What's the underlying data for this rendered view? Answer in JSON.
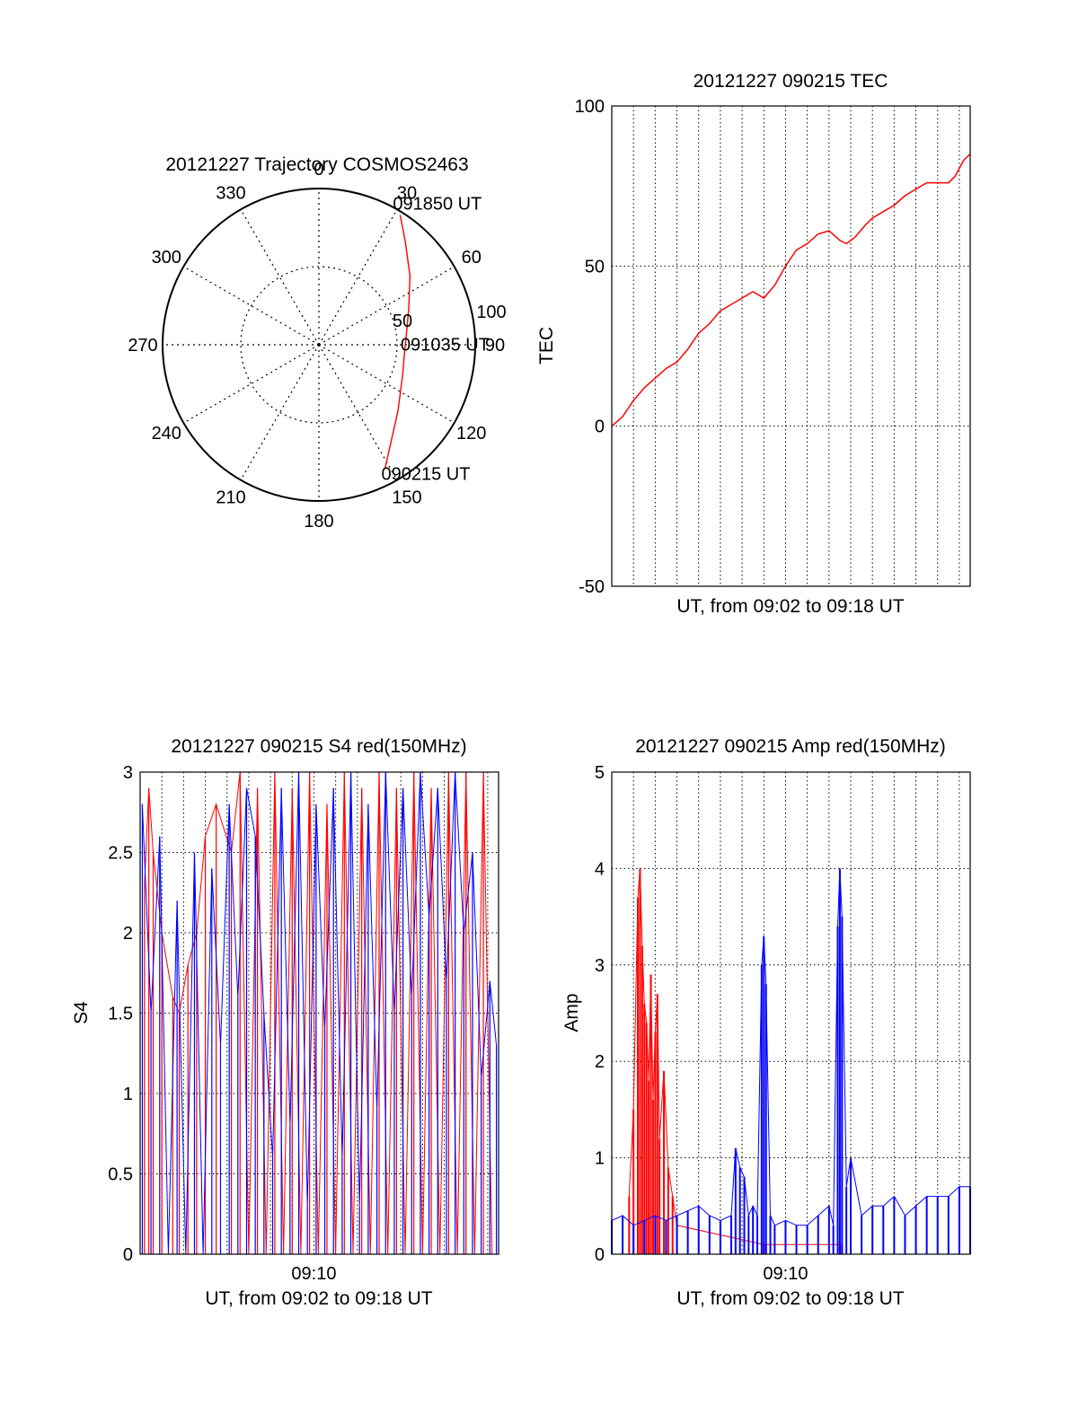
{
  "colors": {
    "red": "#ff0000",
    "blue": "#0000ff",
    "axis": "#000000",
    "grid": "#000000",
    "background": "#ffffff"
  },
  "chart_data": [
    {
      "type": "polar",
      "title": "20121227 Trajectory COSMOS2463",
      "azimuth_labels": [
        "0",
        "30",
        "60",
        "90",
        "120",
        "150",
        "180",
        "210",
        "240",
        "270",
        "300",
        "330"
      ],
      "radial_labels": [
        "50",
        "100"
      ],
      "grid": true,
      "series": [
        {
          "color": "red",
          "points": [
            {
              "time": "090215 UT",
              "azimuth": 152,
              "radius": 90
            },
            {
              "time": "",
              "azimuth": 130,
              "radius": 66
            },
            {
              "time": "",
              "azimuth": 110,
              "radius": 57
            },
            {
              "time": "091035 UT",
              "azimuth": 97,
              "radius": 55
            },
            {
              "time": "",
              "azimuth": 85,
              "radius": 56
            },
            {
              "time": "",
              "azimuth": 68,
              "radius": 62
            },
            {
              "time": "",
              "azimuth": 53,
              "radius": 73
            },
            {
              "time": "",
              "azimuth": 40,
              "radius": 86
            },
            {
              "time": "091850 UT",
              "azimuth": 32,
              "radius": 98
            }
          ]
        }
      ],
      "annotations": [
        "090215 UT",
        "091035 UT",
        "091850 UT"
      ]
    },
    {
      "type": "line",
      "title": "20121227 090215 TEC",
      "xlabel": "UT, from 09:02 to 09:18 UT",
      "ylabel": "TEC",
      "xlim": [
        0,
        16.5
      ],
      "ylim": [
        -50,
        100
      ],
      "yticks": [
        "-50",
        "0",
        "50",
        "100"
      ],
      "grid": true,
      "x_unit": "minutes after 09:02",
      "series": [
        {
          "color": "red",
          "x": [
            0.0,
            0.5,
            1.0,
            1.5,
            2.0,
            2.5,
            3.0,
            3.5,
            4.0,
            4.5,
            5.0,
            5.5,
            6.0,
            6.5,
            7.0,
            7.5,
            8.0,
            8.5,
            9.0,
            9.5,
            10.0,
            10.5,
            10.8,
            11.2,
            11.7,
            12.0,
            12.5,
            13.0,
            13.5,
            14.0,
            14.5,
            15.0,
            15.5,
            15.8,
            16.2,
            16.5
          ],
          "values": [
            0,
            3,
            8,
            12,
            15,
            18,
            20,
            24,
            29,
            32,
            36,
            38,
            40,
            42,
            40,
            44,
            50,
            55,
            57,
            60,
            61,
            58,
            57,
            59,
            63,
            65,
            67,
            69,
            72,
            74,
            76,
            76,
            76,
            78,
            83,
            85
          ]
        }
      ]
    },
    {
      "type": "line",
      "title": "20121227 090215 S4 red(150MHz)",
      "xlabel": "UT, from 09:02 to 09:18 UT",
      "ylabel": "S4",
      "xticks": [
        "09:10"
      ],
      "xlim": [
        0,
        16.5
      ],
      "ylim": [
        0,
        3
      ],
      "yticks": [
        "0",
        "0.5",
        "1",
        "1.5",
        "2",
        "2.5",
        "3"
      ],
      "grid": true,
      "x_unit": "minutes after 09:02",
      "series": [
        {
          "color": "red",
          "x": [
            0.2,
            0.4,
            0.6,
            1.0,
            1.5,
            1.8,
            2.2,
            2.6,
            3.0,
            3.5,
            4.2,
            4.6,
            5.0,
            5.4,
            5.8,
            6.2,
            6.6,
            7.0,
            7.4,
            7.8,
            8.2,
            8.6,
            9.0,
            9.4,
            9.8,
            10.2,
            10.6,
            11.0,
            11.4,
            11.8,
            12.2,
            12.6,
            13.0,
            13.4,
            13.8,
            14.2,
            14.6,
            15.0,
            15.4,
            15.8,
            16.2
          ],
          "values": [
            2.3,
            2.9,
            2.5,
            2.0,
            1.6,
            1.5,
            1.8,
            2.0,
            2.6,
            2.8,
            2.5,
            3.0,
            0.0,
            2.9,
            0.0,
            3.0,
            0.0,
            2.9,
            0.0,
            3.0,
            0.0,
            2.8,
            0.0,
            3.0,
            0.0,
            2.9,
            0.0,
            3.0,
            0.0,
            2.9,
            0.0,
            3.0,
            0.0,
            2.9,
            0.0,
            3.0,
            0.0,
            3.0,
            0.0,
            3.0,
            0.0
          ]
        },
        {
          "color": "blue",
          "x": [
            0.1,
            0.5,
            0.9,
            1.3,
            1.7,
            2.1,
            2.5,
            2.9,
            3.3,
            3.7,
            4.1,
            4.5,
            4.9,
            5.3,
            5.7,
            6.1,
            6.5,
            6.9,
            7.3,
            7.7,
            8.1,
            8.5,
            8.9,
            9.3,
            9.7,
            10.1,
            10.5,
            10.9,
            11.3,
            11.7,
            12.1,
            12.5,
            12.9,
            13.3,
            13.7,
            14.1,
            14.5,
            14.9,
            15.3,
            15.7,
            16.1,
            16.4
          ],
          "values": [
            2.8,
            1.5,
            2.6,
            0.0,
            2.2,
            0.0,
            2.5,
            0.0,
            2.4,
            1.3,
            2.8,
            1.6,
            2.9,
            2.6,
            1.5,
            0.6,
            2.9,
            0.8,
            3.0,
            0.3,
            2.8,
            1.4,
            2.9,
            0.6,
            3.0,
            0.3,
            2.8,
            0.9,
            3.0,
            1.5,
            2.9,
            1.6,
            3.0,
            2.1,
            2.9,
            1.7,
            3.0,
            2.0,
            2.5,
            1.1,
            1.7,
            1.3
          ]
        }
      ]
    },
    {
      "type": "line",
      "title": "20121227 090215 Amp red(150MHz)",
      "xlabel": "UT, from 09:02 to 09:18 UT",
      "ylabel": "Amp",
      "xticks": [
        "09:10"
      ],
      "xlim": [
        0,
        16.5
      ],
      "ylim": [
        0,
        5
      ],
      "yticks": [
        "0",
        "1",
        "2",
        "3",
        "4",
        "5"
      ],
      "grid": true,
      "x_unit": "minutes after 09:02",
      "series": [
        {
          "color": "red",
          "x": [
            0.8,
            1.0,
            1.2,
            1.3,
            1.4,
            1.5,
            1.6,
            1.7,
            1.8,
            1.9,
            2.0,
            2.1,
            2.2,
            2.4,
            2.6,
            2.8,
            3.0,
            7.0,
            7.1,
            10.5,
            10.6
          ],
          "values": [
            0.6,
            1.5,
            3.7,
            4.0,
            3.2,
            2.6,
            2.4,
            1.8,
            2.9,
            1.6,
            2.3,
            2.7,
            1.2,
            1.9,
            0.9,
            0.6,
            0.3,
            0.1,
            0.1,
            0.1,
            0.1
          ]
        },
        {
          "color": "blue",
          "x": [
            0.0,
            0.5,
            1.0,
            1.5,
            2.0,
            2.5,
            3.0,
            3.5,
            4.0,
            4.5,
            5.0,
            5.5,
            5.7,
            5.9,
            6.1,
            6.3,
            6.5,
            6.7,
            6.9,
            7.0,
            7.1,
            7.3,
            7.5,
            8.0,
            8.5,
            9.0,
            9.5,
            10.0,
            10.2,
            10.4,
            10.5,
            10.6,
            10.8,
            11.0,
            11.5,
            12.0,
            12.5,
            13.0,
            13.5,
            14.0,
            14.5,
            15.0,
            15.5,
            16.0,
            16.5
          ],
          "values": [
            0.35,
            0.4,
            0.3,
            0.35,
            0.4,
            0.35,
            0.4,
            0.45,
            0.5,
            0.4,
            0.35,
            0.4,
            1.1,
            0.9,
            0.8,
            0.4,
            0.5,
            0.4,
            3.0,
            3.3,
            2.8,
            0.4,
            0.3,
            0.35,
            0.3,
            0.3,
            0.4,
            0.5,
            0.3,
            3.4,
            4.0,
            3.5,
            0.7,
            1.0,
            0.4,
            0.5,
            0.5,
            0.6,
            0.4,
            0.5,
            0.6,
            0.6,
            0.6,
            0.7,
            0.7
          ]
        }
      ]
    }
  ]
}
